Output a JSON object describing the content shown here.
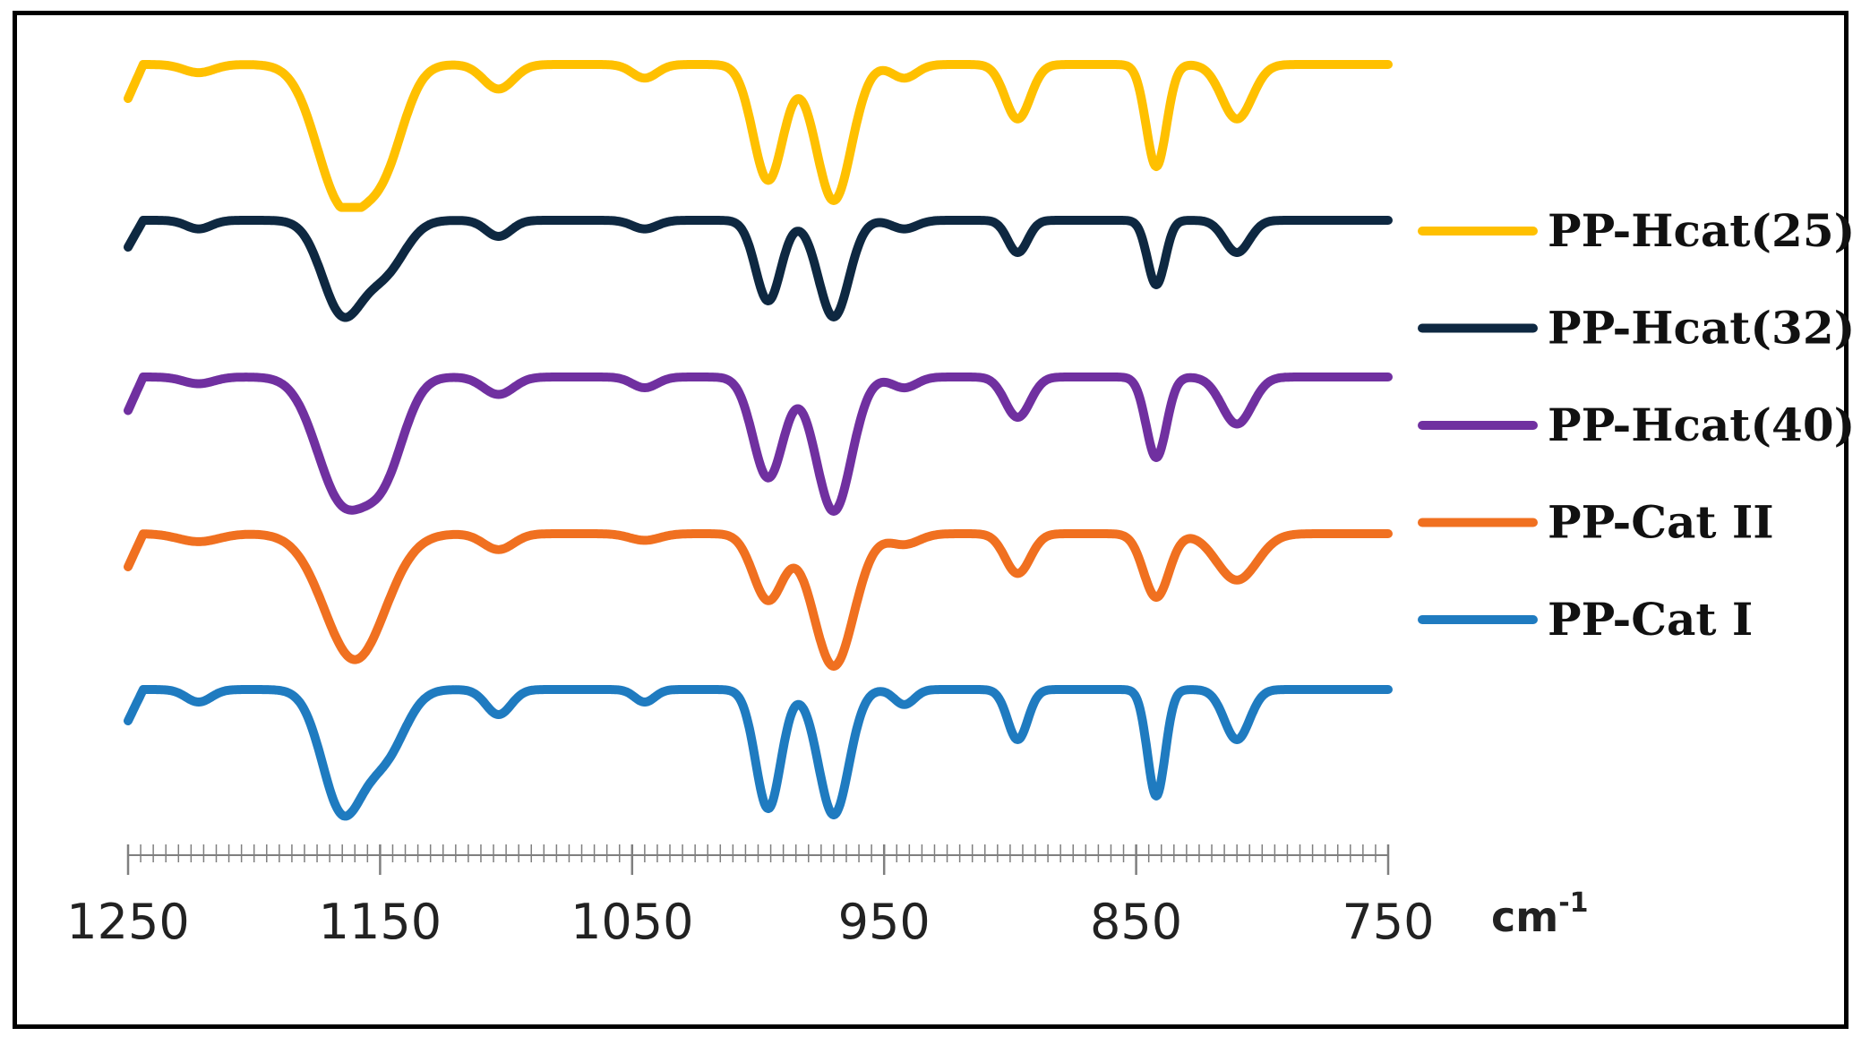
{
  "chart_data": {
    "type": "line",
    "title": "",
    "xlabel": "cm-1",
    "xlabel_parts": {
      "base": "cm",
      "sup": "-1"
    },
    "ylabel": "",
    "xlim": [
      1250,
      750
    ],
    "x_reversed": true,
    "x_tick_labels": [
      "1250",
      "1150",
      "1050",
      "950",
      "850",
      "750"
    ],
    "grid": false,
    "legend_position": "right",
    "series": [
      {
        "name": "PP-Hcat(25)",
        "color": "#FFC000",
        "baseline": 0.0,
        "dips": [
          [
            1222,
            0.06,
            6
          ],
          [
            1165,
            1.0,
            10
          ],
          [
            1148,
            0.6,
            8
          ],
          [
            1103,
            0.18,
            6
          ],
          [
            1045,
            0.1,
            5
          ],
          [
            996,
            0.85,
            6
          ],
          [
            970,
            1.0,
            7
          ],
          [
            942,
            0.1,
            5
          ],
          [
            897,
            0.4,
            5
          ],
          [
            842,
            0.75,
            4
          ],
          [
            810,
            0.4,
            6
          ]
        ]
      },
      {
        "name": "PP-Hcat(32)",
        "color": "#0E2841",
        "baseline": 0.0,
        "dips": [
          [
            1222,
            0.08,
            5
          ],
          [
            1165,
            0.85,
            8
          ],
          [
            1148,
            0.45,
            8
          ],
          [
            1103,
            0.15,
            5
          ],
          [
            1045,
            0.08,
            5
          ],
          [
            996,
            0.75,
            5
          ],
          [
            970,
            0.9,
            6
          ],
          [
            942,
            0.08,
            5
          ],
          [
            897,
            0.3,
            4
          ],
          [
            842,
            0.6,
            3.5
          ],
          [
            810,
            0.3,
            5
          ]
        ]
      },
      {
        "name": "PP-Hcat(40)",
        "color": "#7030A0",
        "baseline": 0.0,
        "dips": [
          [
            1222,
            0.05,
            6
          ],
          [
            1165,
            0.9,
            10
          ],
          [
            1148,
            0.6,
            8
          ],
          [
            1103,
            0.13,
            6
          ],
          [
            1045,
            0.08,
            5
          ],
          [
            996,
            0.75,
            6
          ],
          [
            970,
            1.0,
            7
          ],
          [
            942,
            0.08,
            5
          ],
          [
            897,
            0.3,
            5
          ],
          [
            842,
            0.6,
            4
          ],
          [
            810,
            0.35,
            6
          ]
        ]
      },
      {
        "name": "PP-Cat II",
        "color": "#F07020",
        "baseline": 0.0,
        "dips": [
          [
            1222,
            0.06,
            8
          ],
          [
            1160,
            0.95,
            12
          ],
          [
            1103,
            0.12,
            6
          ],
          [
            1045,
            0.05,
            6
          ],
          [
            996,
            0.5,
            6
          ],
          [
            970,
            1.0,
            8
          ],
          [
            942,
            0.08,
            6
          ],
          [
            897,
            0.3,
            5
          ],
          [
            842,
            0.48,
            5
          ],
          [
            810,
            0.35,
            8
          ]
        ]
      },
      {
        "name": "PP-Cat I",
        "color": "#1F7BC0",
        "baseline": 0.0,
        "dips": [
          [
            1222,
            0.1,
            5
          ],
          [
            1165,
            0.95,
            8
          ],
          [
            1148,
            0.5,
            8
          ],
          [
            1103,
            0.2,
            5
          ],
          [
            1045,
            0.1,
            4
          ],
          [
            996,
            0.95,
            5
          ],
          [
            970,
            1.0,
            6
          ],
          [
            942,
            0.12,
            4
          ],
          [
            897,
            0.4,
            4
          ],
          [
            842,
            0.85,
            3.5
          ],
          [
            810,
            0.4,
            5
          ]
        ]
      }
    ]
  }
}
